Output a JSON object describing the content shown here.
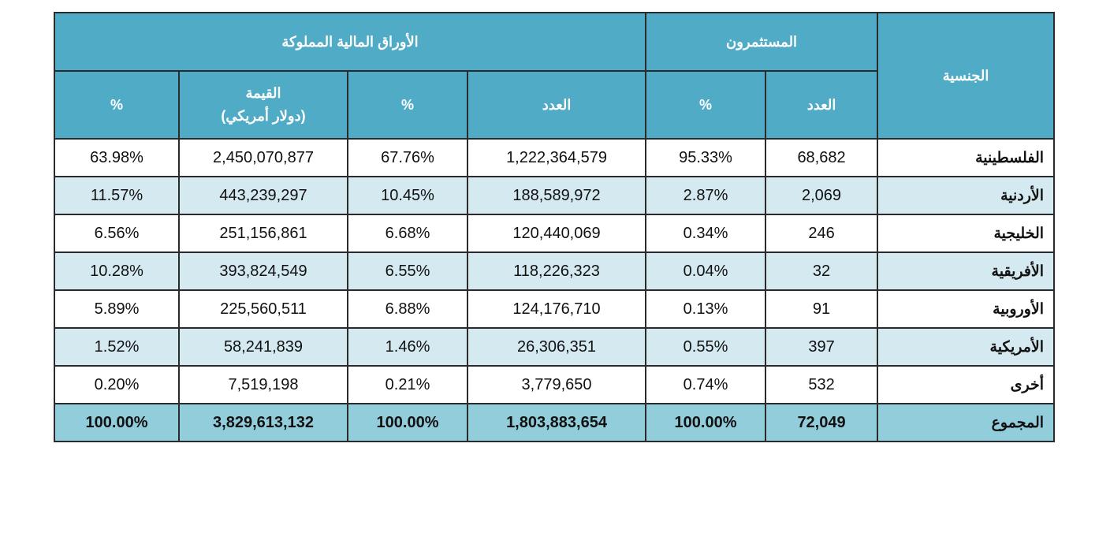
{
  "header": {
    "nationality": "الجنسية",
    "investors": "المستثمرون",
    "securities": "الأوراق المالية المملوكة",
    "count": "العدد",
    "percent": "%",
    "value_line1": "القيمة",
    "value_line2": "(دولار أمريكي)"
  },
  "rows": [
    {
      "nationality": "الفلسطينية",
      "investors_count": "68,682",
      "investors_pct": "95.33%",
      "sec_count": "1,222,364,579",
      "sec_count_pct": "67.76%",
      "value": "2,450,070,877",
      "value_pct": "63.98%"
    },
    {
      "nationality": "الأردنية",
      "investors_count": "2,069",
      "investors_pct": "2.87%",
      "sec_count": "188,589,972",
      "sec_count_pct": "10.45%",
      "value": "443,239,297",
      "value_pct": "11.57%"
    },
    {
      "nationality": "الخليجية",
      "investors_count": "246",
      "investors_pct": "0.34%",
      "sec_count": "120,440,069",
      "sec_count_pct": "6.68%",
      "value": "251,156,861",
      "value_pct": "6.56%"
    },
    {
      "nationality": "الأفريقية",
      "investors_count": "32",
      "investors_pct": "0.04%",
      "sec_count": "118,226,323",
      "sec_count_pct": "6.55%",
      "value": "393,824,549",
      "value_pct": "10.28%"
    },
    {
      "nationality": "الأوروبية",
      "investors_count": "91",
      "investors_pct": "0.13%",
      "sec_count": "124,176,710",
      "sec_count_pct": "6.88%",
      "value": "225,560,511",
      "value_pct": "5.89%"
    },
    {
      "nationality": "الأمريكية",
      "investors_count": "397",
      "investors_pct": "0.55%",
      "sec_count": "26,306,351",
      "sec_count_pct": "1.46%",
      "value": "58,241,839",
      "value_pct": "1.52%"
    },
    {
      "nationality": "أخرى",
      "investors_count": "532",
      "investors_pct": "0.74%",
      "sec_count": "3,779,650",
      "sec_count_pct": "0.21%",
      "value": "7,519,198",
      "value_pct": "0.20%"
    }
  ],
  "total": {
    "nationality": "المجموع",
    "investors_count": "72,049",
    "investors_pct": "100.00%",
    "sec_count": "1,803,883,654",
    "sec_count_pct": "100.00%",
    "value": "3,829,613,132",
    "value_pct": "100.00%"
  }
}
